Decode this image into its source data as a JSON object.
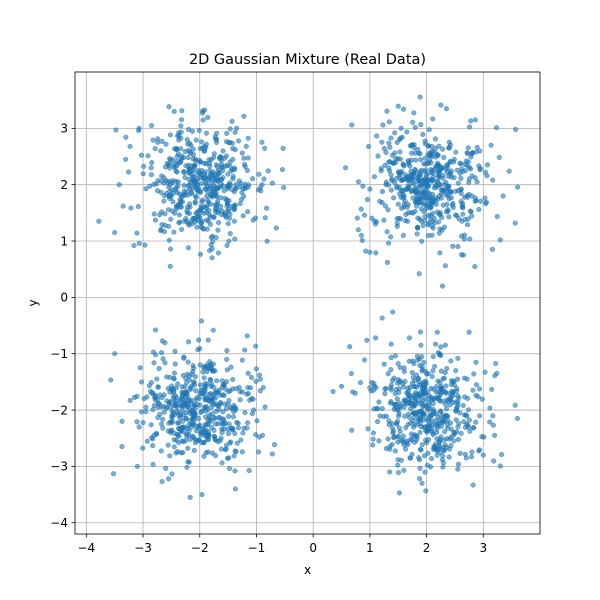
{
  "chart_data": {
    "type": "scatter",
    "title": "2D Gaussian Mixture (Real Data)",
    "xlabel": "x",
    "ylabel": "y",
    "xlim": [
      -4.2,
      4.0
    ],
    "ylim": [
      -4.2,
      4.0
    ],
    "xticks": [
      -4,
      -3,
      -2,
      -1,
      0,
      1,
      2,
      3
    ],
    "yticks": [
      -4,
      -3,
      -2,
      -1,
      0,
      1,
      2,
      3
    ],
    "grid": true,
    "point_color": "#1f77b4",
    "clusters": [
      {
        "center": [
          -2,
          2
        ],
        "std": 0.5,
        "count": 500
      },
      {
        "center": [
          2,
          2
        ],
        "std": 0.5,
        "count": 500
      },
      {
        "center": [
          -2,
          -2
        ],
        "std": 0.5,
        "count": 500
      },
      {
        "center": [
          2,
          -2
        ],
        "std": 0.5,
        "count": 500
      }
    ],
    "series": [
      {
        "points": [
          [
            -3.78,
            1.35
          ],
          [
            -3.48,
            2.97
          ],
          [
            -3.07,
            3.0
          ],
          [
            -2.45,
            3.3
          ],
          [
            -2.52,
            0.55
          ],
          [
            -3.16,
            0.92
          ],
          [
            -3.42,
            2.0
          ],
          [
            -1.18,
            2.68
          ],
          [
            -0.52,
            1.95
          ],
          [
            -0.65,
            1.23
          ],
          [
            -1.95,
            3.27
          ],
          [
            -2.85,
            3.05
          ],
          [
            -1.52,
            0.92
          ],
          [
            -0.9,
            2.0
          ],
          [
            -3.35,
            1.62
          ],
          [
            -1.35,
            3.0
          ],
          [
            -2.2,
            0.88
          ],
          [
            -3.5,
            1.15
          ]
        ]
      },
      {
        "points": [
          [
            0.68,
            3.06
          ],
          [
            3.57,
            2.98
          ],
          [
            2.28,
            0.2
          ],
          [
            1.87,
            0.42
          ],
          [
            1.31,
            0.62
          ],
          [
            2.86,
            3.15
          ],
          [
            3.35,
            1.8
          ],
          [
            3.3,
            1.02
          ],
          [
            2.65,
            0.75
          ],
          [
            1.23,
            3.06
          ],
          [
            2.35,
            3.35
          ],
          [
            0.57,
            2.3
          ],
          [
            0.85,
            1.1
          ],
          [
            1.0,
            0.8
          ],
          [
            1.55,
            3.0
          ],
          [
            2.8,
            2.55
          ],
          [
            0.8,
            2.05
          ]
        ]
      },
      {
        "points": [
          [
            -3.5,
            -1.0
          ],
          [
            -3.52,
            -3.13
          ],
          [
            -1.96,
            -3.5
          ],
          [
            -2.17,
            -3.55
          ],
          [
            -1.97,
            -0.42
          ],
          [
            -2.78,
            -0.58
          ],
          [
            -0.72,
            -2.78
          ],
          [
            -1.37,
            -3.4
          ],
          [
            -0.95,
            -2.48
          ],
          [
            -3.37,
            -2.2
          ],
          [
            -1.0,
            -1.27
          ],
          [
            -2.95,
            -1.95
          ],
          [
            -1.05,
            -2.0
          ],
          [
            -3.1,
            -3.0
          ],
          [
            -2.55,
            -3.22
          ],
          [
            -0.88,
            -1.6
          ],
          [
            -3.05,
            -1.25
          ]
        ]
      },
      {
        "points": [
          [
            0.35,
            -1.67
          ],
          [
            3.6,
            -2.15
          ],
          [
            1.52,
            -3.47
          ],
          [
            1.92,
            -3.3
          ],
          [
            2.75,
            -0.62
          ],
          [
            2.82,
            -3.33
          ],
          [
            1.1,
            -0.72
          ],
          [
            3.2,
            -2.45
          ],
          [
            0.5,
            -1.58
          ],
          [
            2.88,
            -1.55
          ],
          [
            1.05,
            -2.62
          ],
          [
            2.25,
            -0.88
          ],
          [
            1.9,
            -0.85
          ],
          [
            3.0,
            -2.8
          ],
          [
            0.68,
            -2.36
          ],
          [
            1.35,
            -3.1
          ],
          [
            2.55,
            -3.05
          ]
        ]
      }
    ]
  }
}
